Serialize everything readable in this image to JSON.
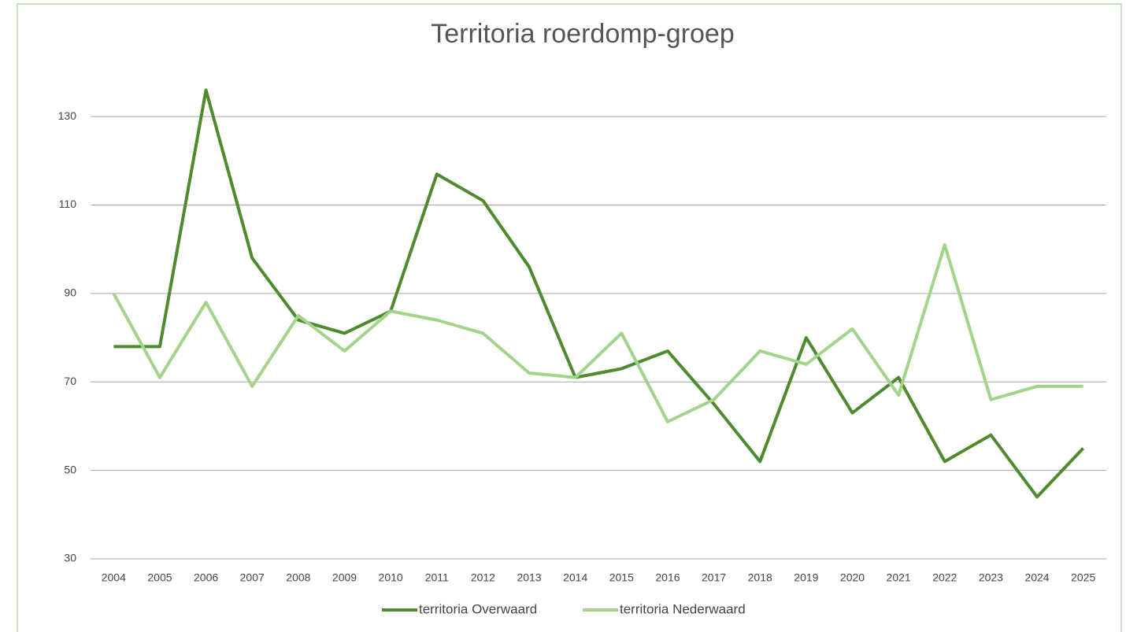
{
  "chart_data": {
    "type": "line",
    "title": "Territoria roerdomp-groep",
    "categories": [
      "2004",
      "2005",
      "2006",
      "2007",
      "2008",
      "2009",
      "2010",
      "2011",
      "2012",
      "2013",
      "2014",
      "2015",
      "2016",
      "2017",
      "2018",
      "2019",
      "2020",
      "2021",
      "2022",
      "2023",
      "2024",
      "2025"
    ],
    "series": [
      {
        "name": "territoria Overwaard",
        "color": "#4e8a2e",
        "values": [
          78,
          78,
          136,
          98,
          84,
          81,
          86,
          117,
          111,
          96,
          71,
          73,
          77,
          65,
          52,
          80,
          63,
          71,
          52,
          58,
          44,
          55
        ]
      },
      {
        "name": "territoria Nederwaard",
        "color": "#a3d48c",
        "values": [
          90,
          71,
          88,
          69,
          85,
          77,
          86,
          84,
          81,
          72,
          71,
          81,
          61,
          66,
          77,
          74,
          82,
          67,
          101,
          66,
          69,
          69
        ]
      }
    ],
    "ylim": [
      30,
      140
    ],
    "yticks": [
      30,
      50,
      70,
      90,
      110,
      130
    ],
    "grid": true,
    "legend": "bottom"
  }
}
